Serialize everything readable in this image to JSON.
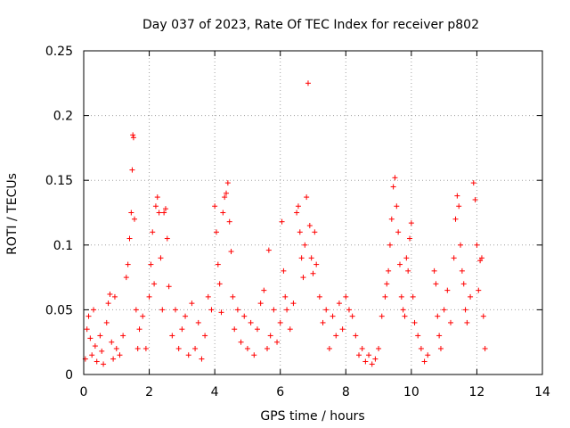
{
  "chart_data": {
    "type": "scatter",
    "title": "Day 037 of 2023, Rate Of TEC Index for receiver p802",
    "xlabel": "GPS time / hours",
    "ylabel": "ROTI / TECUs",
    "xlim": [
      0,
      14
    ],
    "ylim": [
      0,
      0.25
    ],
    "xticks": [
      0,
      2,
      4,
      6,
      8,
      10,
      12,
      14
    ],
    "xtick_labels": [
      "0",
      "2",
      "4",
      "6",
      "8",
      "10",
      "12",
      "14"
    ],
    "yticks": [
      0,
      0.05,
      0.1,
      0.15,
      0.2,
      0.25
    ],
    "ytick_labels": [
      "0",
      "0.05",
      "0.1",
      "0.15",
      "0.2",
      "0.25"
    ],
    "grid": true,
    "marker": "+",
    "color": "#ff0000",
    "series": [
      {
        "name": "ROTI",
        "points": [
          [
            0.05,
            0.012
          ],
          [
            0.1,
            0.035
          ],
          [
            0.15,
            0.045
          ],
          [
            0.2,
            0.028
          ],
          [
            0.25,
            0.015
          ],
          [
            0.3,
            0.05
          ],
          [
            0.35,
            0.022
          ],
          [
            0.4,
            0.01
          ],
          [
            0.5,
            0.03
          ],
          [
            0.55,
            0.018
          ],
          [
            0.6,
            0.008
          ],
          [
            0.7,
            0.04
          ],
          [
            0.75,
            0.055
          ],
          [
            0.8,
            0.062
          ],
          [
            0.85,
            0.025
          ],
          [
            0.9,
            0.012
          ],
          [
            0.95,
            0.06
          ],
          [
            1.0,
            0.02
          ],
          [
            1.1,
            0.015
          ],
          [
            1.2,
            0.03
          ],
          [
            1.3,
            0.075
          ],
          [
            1.35,
            0.085
          ],
          [
            1.4,
            0.105
          ],
          [
            1.45,
            0.125
          ],
          [
            1.48,
            0.158
          ],
          [
            1.5,
            0.185
          ],
          [
            1.52,
            0.183
          ],
          [
            1.55,
            0.12
          ],
          [
            1.6,
            0.05
          ],
          [
            1.65,
            0.02
          ],
          [
            1.7,
            0.035
          ],
          [
            1.8,
            0.045
          ],
          [
            1.9,
            0.02
          ],
          [
            2.0,
            0.06
          ],
          [
            2.05,
            0.085
          ],
          [
            2.1,
            0.11
          ],
          [
            2.15,
            0.07
          ],
          [
            2.2,
            0.13
          ],
          [
            2.25,
            0.137
          ],
          [
            2.3,
            0.125
          ],
          [
            2.35,
            0.09
          ],
          [
            2.4,
            0.05
          ],
          [
            2.45,
            0.125
          ],
          [
            2.5,
            0.128
          ],
          [
            2.55,
            0.105
          ],
          [
            2.6,
            0.068
          ],
          [
            2.7,
            0.03
          ],
          [
            2.8,
            0.05
          ],
          [
            2.9,
            0.02
          ],
          [
            3.0,
            0.035
          ],
          [
            3.1,
            0.045
          ],
          [
            3.2,
            0.015
          ],
          [
            3.3,
            0.055
          ],
          [
            3.4,
            0.02
          ],
          [
            3.5,
            0.04
          ],
          [
            3.6,
            0.012
          ],
          [
            3.7,
            0.03
          ],
          [
            3.8,
            0.06
          ],
          [
            3.9,
            0.05
          ],
          [
            4.0,
            0.13
          ],
          [
            4.05,
            0.11
          ],
          [
            4.1,
            0.085
          ],
          [
            4.15,
            0.07
          ],
          [
            4.2,
            0.048
          ],
          [
            4.25,
            0.125
          ],
          [
            4.3,
            0.137
          ],
          [
            4.35,
            0.14
          ],
          [
            4.4,
            0.148
          ],
          [
            4.45,
            0.118
          ],
          [
            4.5,
            0.095
          ],
          [
            4.55,
            0.06
          ],
          [
            4.6,
            0.035
          ],
          [
            4.7,
            0.05
          ],
          [
            4.8,
            0.025
          ],
          [
            4.9,
            0.045
          ],
          [
            5.0,
            0.02
          ],
          [
            5.1,
            0.04
          ],
          [
            5.2,
            0.015
          ],
          [
            5.3,
            0.035
          ],
          [
            5.4,
            0.055
          ],
          [
            5.5,
            0.065
          ],
          [
            5.6,
            0.02
          ],
          [
            5.65,
            0.096
          ],
          [
            5.7,
            0.03
          ],
          [
            5.8,
            0.05
          ],
          [
            5.9,
            0.025
          ],
          [
            6.0,
            0.04
          ],
          [
            6.05,
            0.118
          ],
          [
            6.1,
            0.08
          ],
          [
            6.15,
            0.06
          ],
          [
            6.2,
            0.05
          ],
          [
            6.3,
            0.035
          ],
          [
            6.4,
            0.055
          ],
          [
            6.5,
            0.125
          ],
          [
            6.55,
            0.13
          ],
          [
            6.6,
            0.11
          ],
          [
            6.65,
            0.09
          ],
          [
            6.7,
            0.075
          ],
          [
            6.75,
            0.1
          ],
          [
            6.8,
            0.137
          ],
          [
            6.85,
            0.225
          ],
          [
            6.9,
            0.115
          ],
          [
            6.95,
            0.09
          ],
          [
            7.0,
            0.078
          ],
          [
            7.05,
            0.11
          ],
          [
            7.1,
            0.085
          ],
          [
            7.2,
            0.06
          ],
          [
            7.3,
            0.04
          ],
          [
            7.4,
            0.05
          ],
          [
            7.5,
            0.02
          ],
          [
            7.6,
            0.045
          ],
          [
            7.7,
            0.03
          ],
          [
            7.8,
            0.055
          ],
          [
            7.9,
            0.035
          ],
          [
            8.0,
            0.06
          ],
          [
            8.1,
            0.05
          ],
          [
            8.2,
            0.045
          ],
          [
            8.3,
            0.03
          ],
          [
            8.4,
            0.015
          ],
          [
            8.5,
            0.02
          ],
          [
            8.6,
            0.01
          ],
          [
            8.7,
            0.015
          ],
          [
            8.8,
            0.008
          ],
          [
            8.9,
            0.012
          ],
          [
            9.0,
            0.02
          ],
          [
            9.1,
            0.045
          ],
          [
            9.2,
            0.06
          ],
          [
            9.25,
            0.07
          ],
          [
            9.3,
            0.08
          ],
          [
            9.35,
            0.1
          ],
          [
            9.4,
            0.12
          ],
          [
            9.45,
            0.145
          ],
          [
            9.5,
            0.152
          ],
          [
            9.55,
            0.13
          ],
          [
            9.6,
            0.11
          ],
          [
            9.65,
            0.085
          ],
          [
            9.7,
            0.06
          ],
          [
            9.75,
            0.05
          ],
          [
            9.8,
            0.045
          ],
          [
            9.85,
            0.09
          ],
          [
            9.9,
            0.08
          ],
          [
            9.95,
            0.105
          ],
          [
            10.0,
            0.117
          ],
          [
            10.05,
            0.06
          ],
          [
            10.1,
            0.04
          ],
          [
            10.2,
            0.03
          ],
          [
            10.3,
            0.02
          ],
          [
            10.4,
            0.01
          ],
          [
            10.5,
            0.015
          ],
          [
            10.7,
            0.08
          ],
          [
            10.75,
            0.07
          ],
          [
            10.8,
            0.045
          ],
          [
            10.85,
            0.03
          ],
          [
            10.9,
            0.02
          ],
          [
            11.0,
            0.05
          ],
          [
            11.1,
            0.065
          ],
          [
            11.2,
            0.04
          ],
          [
            11.3,
            0.09
          ],
          [
            11.35,
            0.12
          ],
          [
            11.4,
            0.138
          ],
          [
            11.45,
            0.13
          ],
          [
            11.5,
            0.1
          ],
          [
            11.55,
            0.08
          ],
          [
            11.6,
            0.07
          ],
          [
            11.65,
            0.05
          ],
          [
            11.7,
            0.04
          ],
          [
            11.8,
            0.06
          ],
          [
            11.9,
            0.148
          ],
          [
            11.95,
            0.135
          ],
          [
            12.0,
            0.1
          ],
          [
            12.05,
            0.065
          ],
          [
            12.1,
            0.088
          ],
          [
            12.15,
            0.09
          ],
          [
            12.2,
            0.045
          ],
          [
            12.25,
            0.02
          ]
        ]
      }
    ]
  }
}
